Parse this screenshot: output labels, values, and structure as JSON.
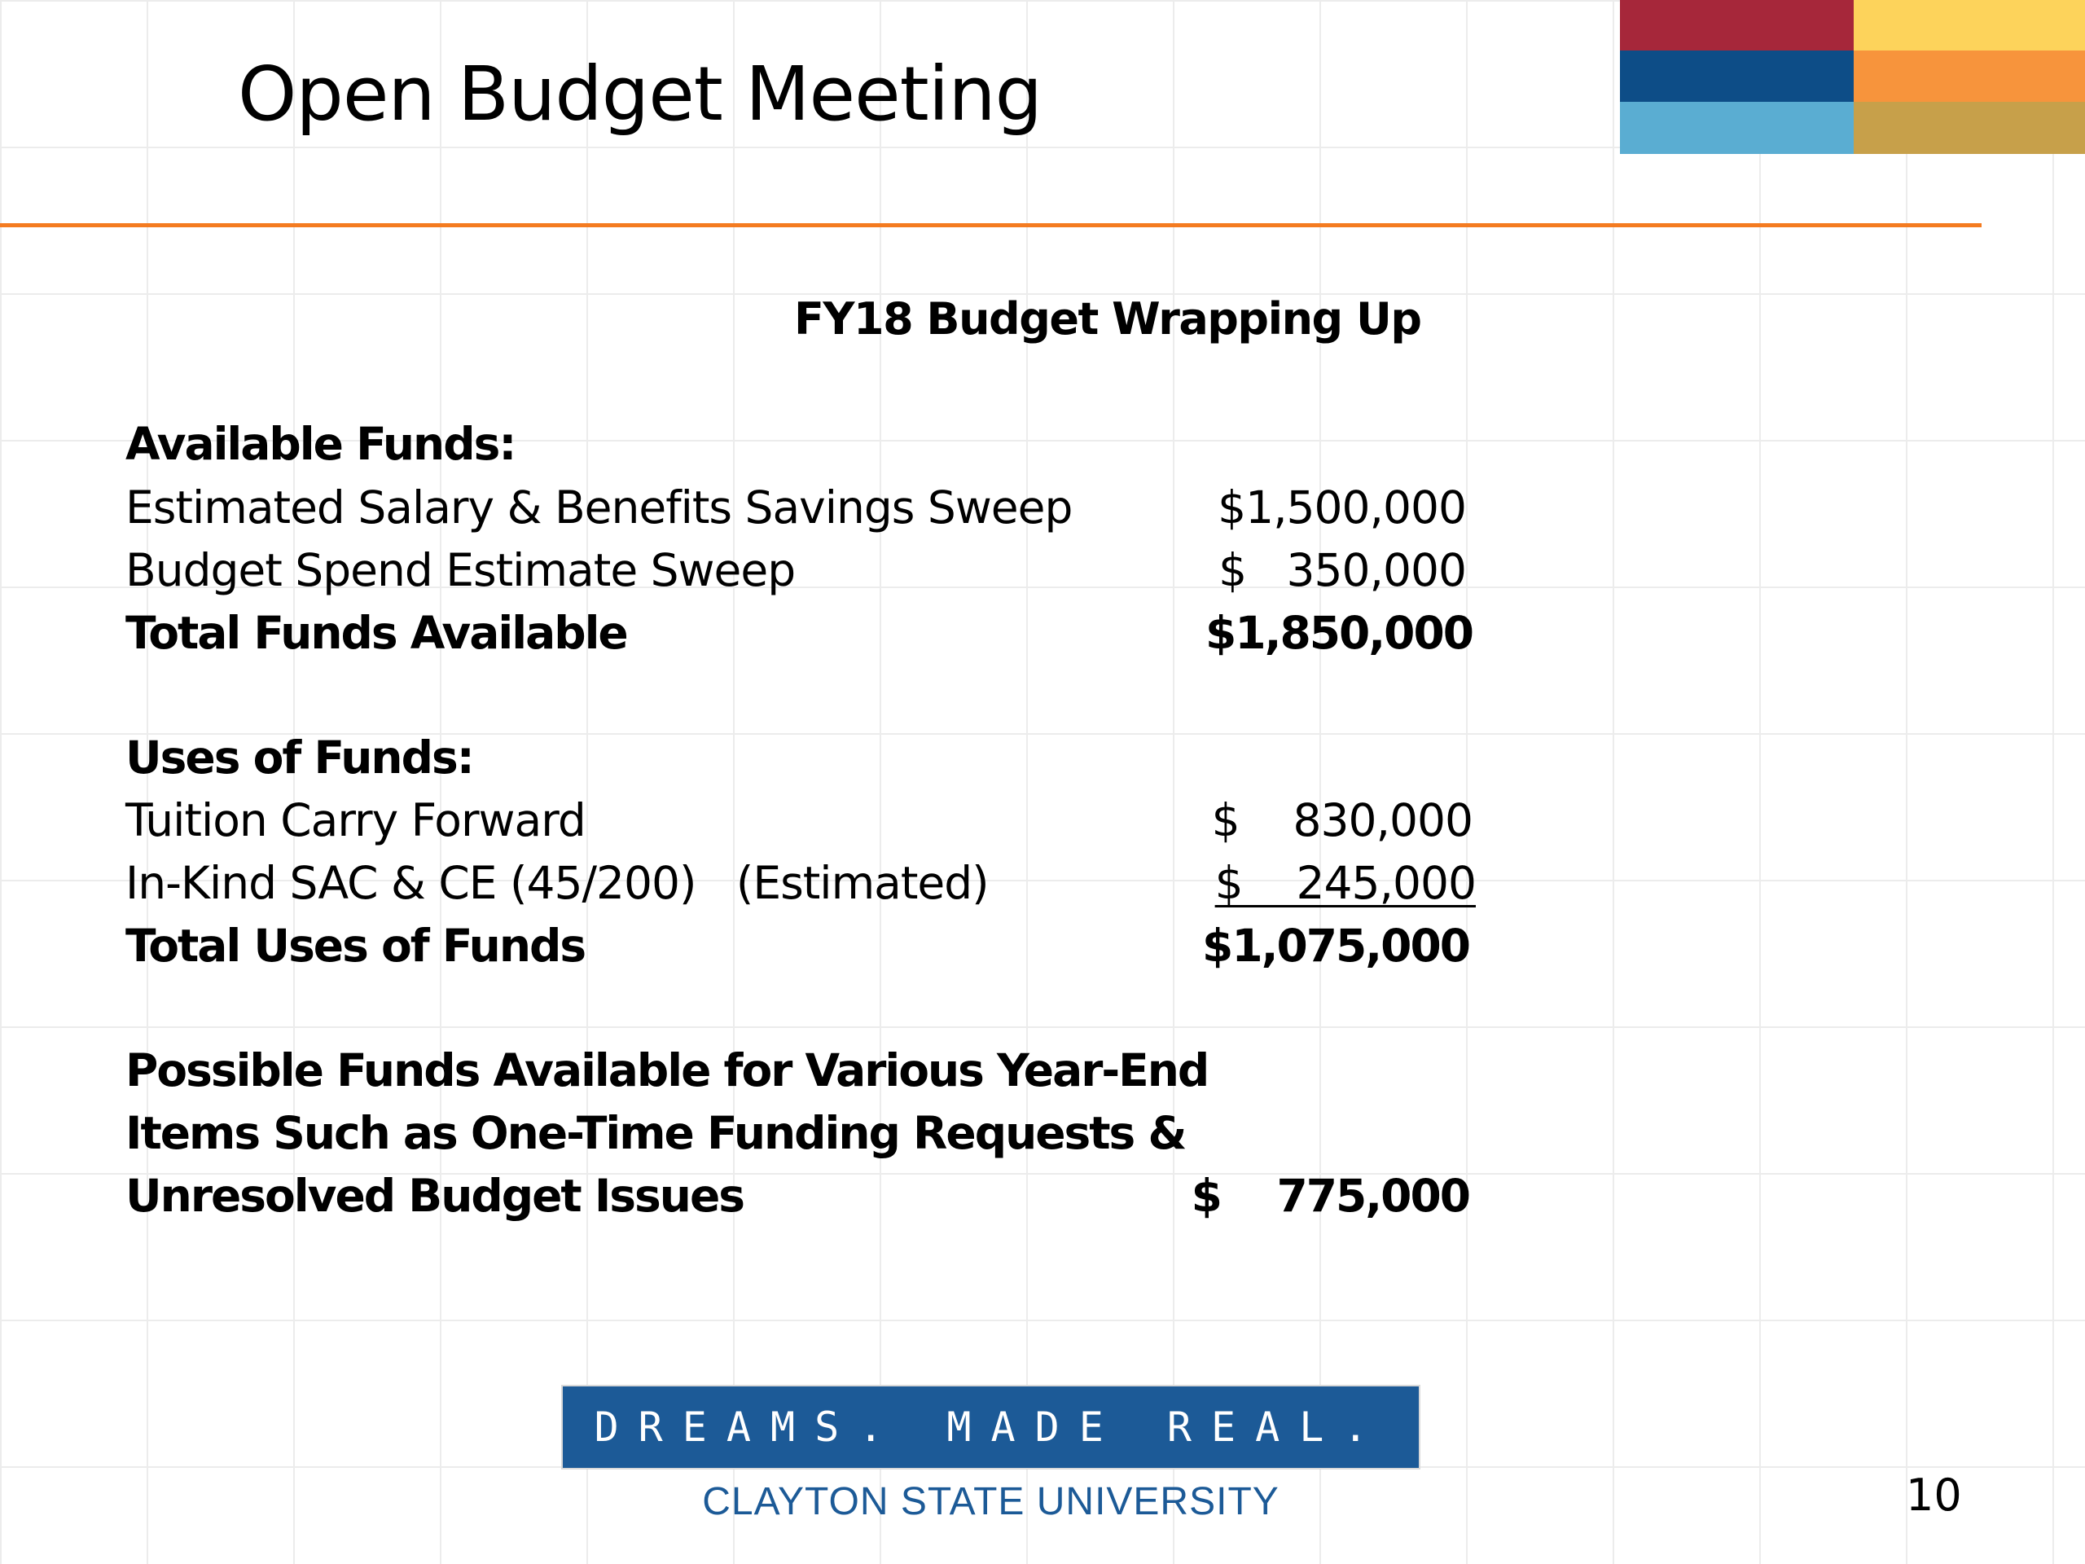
{
  "slide": {
    "title": "Open Budget Meeting",
    "subtitle": "FY18 Budget Wrapping Up",
    "page_number": "10"
  },
  "available_funds": {
    "heading": "Available Funds:",
    "items": [
      {
        "label": "Estimated Salary & Benefits Savings Sweep",
        "amount": "$1,500,000"
      },
      {
        "label": "Budget Spend Estimate Sweep",
        "amount": "$   350,000"
      }
    ],
    "total_label": "Total Funds Available",
    "total_amount": "$1,850,000"
  },
  "uses_of_funds": {
    "heading": "Uses of Funds:",
    "items": [
      {
        "label": "Tuition Carry Forward",
        "amount": "$    830,000"
      },
      {
        "label": "In-Kind SAC & CE (45/200)   (Estimated)",
        "amount": "$    245,000"
      }
    ],
    "total_label": "Total Uses of Funds",
    "total_amount": "$1,075,000"
  },
  "possible_funds": {
    "lines": [
      "Possible Funds Available for Various Year-End",
      "Items Such as One-Time Funding Requests &",
      "Unresolved Budget Issues"
    ],
    "amount": "$    775,000"
  },
  "footer": {
    "tagline": "DREAMS. MADE REAL.",
    "university": "CLAYTON STATE UNIVERSITY"
  },
  "colors": {
    "accent_rule": "#f47b20",
    "brand_blue": "#1c5a97",
    "block_red": "#a6273a",
    "block_dark_blue": "#0d4d87",
    "block_light_blue": "#5aadd2",
    "block_yellow": "#fdd35b",
    "block_orange": "#f7943c",
    "block_gold": "#c7a04a"
  }
}
